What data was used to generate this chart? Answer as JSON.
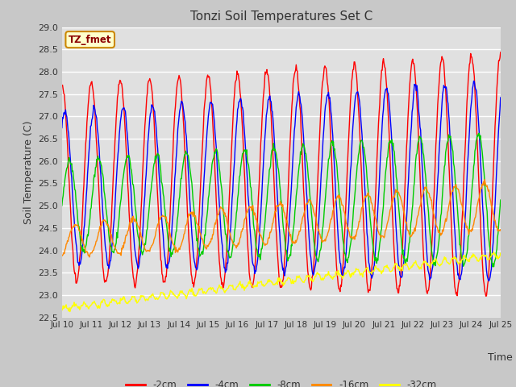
{
  "title": "Tonzi Soil Temperatures Set C",
  "xlabel": "Time",
  "ylabel": "Soil Temperature (C)",
  "ylim": [
    22.5,
    29.0
  ],
  "yticks": [
    22.5,
    23.0,
    23.5,
    24.0,
    24.5,
    25.0,
    25.5,
    26.0,
    26.5,
    27.0,
    27.5,
    28.0,
    28.5,
    29.0
  ],
  "xtick_labels": [
    "Jul 10",
    "Jul 11",
    "Jul 12",
    "Jul 13",
    "Jul 14",
    "Jul 15",
    "Jul 16",
    "Jul 17",
    "Jul 18",
    "Jul 19",
    "Jul 20",
    "Jul 21",
    "Jul 22",
    "Jul 23",
    "Jul 24",
    "Jul 25"
  ],
  "line_colors": [
    "#ff0000",
    "#0000ff",
    "#00cc00",
    "#ff8800",
    "#ffff00"
  ],
  "line_labels": [
    "-2cm",
    "-4cm",
    "-8cm",
    "-16cm",
    "-32cm"
  ],
  "legend_label": "TZ_fmet",
  "legend_bg": "#ffffcc",
  "legend_border": "#cc8800",
  "outer_bg": "#c8c8c8",
  "plot_bg": "#e0e0e0",
  "grid_color": "#ffffff",
  "n_points": 720,
  "days": 15,
  "start_day": 10
}
